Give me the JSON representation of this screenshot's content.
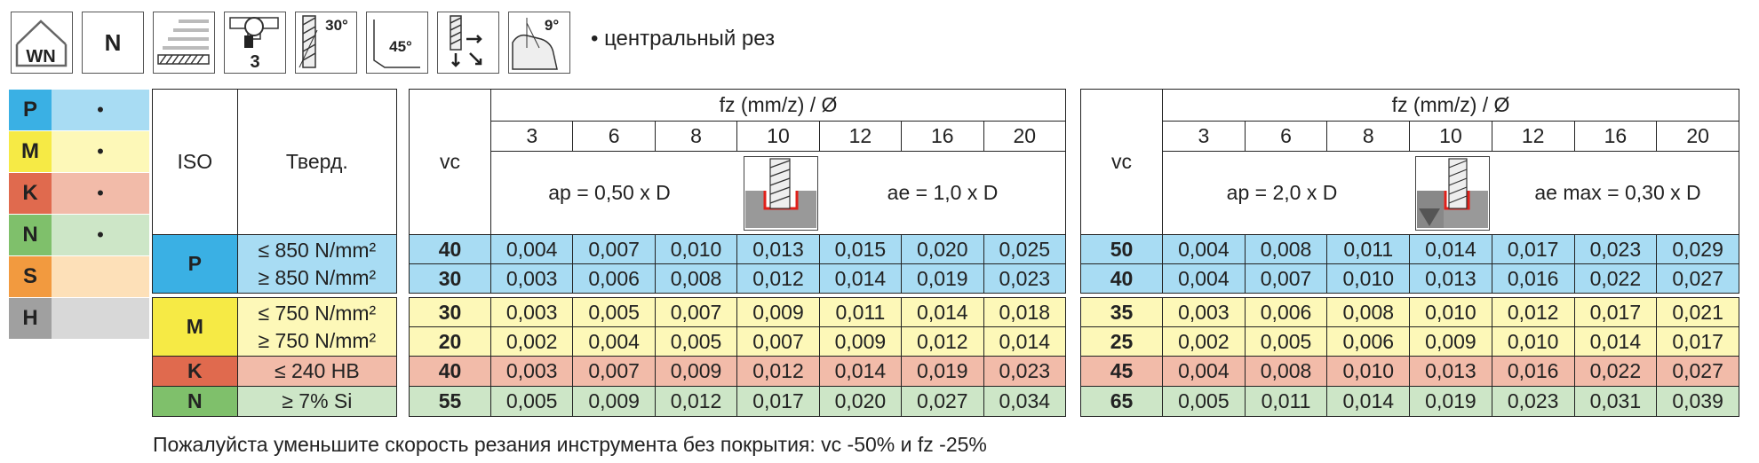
{
  "header": {
    "icons": [
      {
        "name": "wn-roof-icon",
        "label": "WN"
      },
      {
        "name": "n-box-icon",
        "label": "N"
      },
      {
        "name": "surface-finish-icon"
      },
      {
        "name": "flute-count-icon",
        "label": "3"
      },
      {
        "name": "helix-angle-icon",
        "label": "30°"
      },
      {
        "name": "corner-chamfer-icon",
        "label": "45°"
      },
      {
        "name": "plunge-direction-icon"
      },
      {
        "name": "clearance-angle-icon",
        "label": "9°"
      }
    ],
    "note": "• центральный рез"
  },
  "legend": [
    {
      "letter": "P",
      "dot": "•",
      "color_letter": "#3ab0e4",
      "color_fill": "#a8dcf3"
    },
    {
      "letter": "M",
      "dot": "•",
      "color_letter": "#f6ea45",
      "color_fill": "#fdf8b8"
    },
    {
      "letter": "K",
      "dot": "•",
      "color_letter": "#e06a4e",
      "color_fill": "#f2bba9"
    },
    {
      "letter": "N",
      "dot": "•",
      "color_letter": "#7fc06b",
      "color_fill": "#cde6c7"
    },
    {
      "letter": "S",
      "dot": "",
      "color_letter": "#f29a3f",
      "color_fill": "#fde0b8"
    },
    {
      "letter": "H",
      "dot": "",
      "color_letter": "#a0a0a0",
      "color_fill": "#d8d8d8"
    }
  ],
  "left_table": {
    "col_iso": "ISO",
    "col_hard": "Тверд.",
    "rows": [
      {
        "iso": "P",
        "hard": [
          "≤ 850 N/mm²",
          "≥ 850 N/mm²"
        ],
        "cls": "rowP",
        "iso_color": "#3ab0e4"
      },
      {
        "iso": "M",
        "hard": [
          "≤ 750 N/mm²",
          "≥ 750 N/mm²"
        ],
        "cls": "rowM",
        "iso_color": "#f6ea45"
      },
      {
        "iso": "K",
        "hard": [
          "≤ 240 HB"
        ],
        "cls": "rowK",
        "iso_color": "#e06a4e"
      },
      {
        "iso": "N",
        "hard": [
          "≥ 7% Si"
        ],
        "cls": "rowN",
        "iso_color": "#7fc06b"
      }
    ]
  },
  "table1": {
    "vc_label": "vc",
    "fz_label": "fz (mm/z) / Ø",
    "diameters": [
      "3",
      "6",
      "8",
      "10",
      "12",
      "16",
      "20"
    ],
    "ap": "ap = 0,50 x D",
    "ae": "ae = 1,0 x D",
    "rows": [
      {
        "vc": "40",
        "vals": [
          "0,004",
          "0,007",
          "0,010",
          "0,013",
          "0,015",
          "0,020",
          "0,025"
        ],
        "cls": "rowP"
      },
      {
        "vc": "30",
        "vals": [
          "0,003",
          "0,006",
          "0,008",
          "0,012",
          "0,014",
          "0,019",
          "0,023"
        ],
        "cls": "rowP"
      },
      {
        "vc": "30",
        "vals": [
          "0,003",
          "0,005",
          "0,007",
          "0,009",
          "0,011",
          "0,014",
          "0,018"
        ],
        "cls": "rowM"
      },
      {
        "vc": "20",
        "vals": [
          "0,002",
          "0,004",
          "0,005",
          "0,007",
          "0,009",
          "0,012",
          "0,014"
        ],
        "cls": "rowM"
      },
      {
        "vc": "40",
        "vals": [
          "0,003",
          "0,007",
          "0,009",
          "0,012",
          "0,014",
          "0,019",
          "0,023"
        ],
        "cls": "rowK"
      },
      {
        "vc": "55",
        "vals": [
          "0,005",
          "0,009",
          "0,012",
          "0,017",
          "0,020",
          "0,027",
          "0,034"
        ],
        "cls": "rowN"
      }
    ]
  },
  "table2": {
    "vc_label": "vc",
    "fz_label": "fz (mm/z) / Ø",
    "diameters": [
      "3",
      "6",
      "8",
      "10",
      "12",
      "16",
      "20"
    ],
    "ap": "ap = 2,0 x D",
    "ae": "ae max = 0,30 x D",
    "rows": [
      {
        "vc": "50",
        "vals": [
          "0,004",
          "0,008",
          "0,011",
          "0,014",
          "0,017",
          "0,023",
          "0,029"
        ],
        "cls": "rowP"
      },
      {
        "vc": "40",
        "vals": [
          "0,004",
          "0,007",
          "0,010",
          "0,013",
          "0,016",
          "0,022",
          "0,027"
        ],
        "cls": "rowP"
      },
      {
        "vc": "35",
        "vals": [
          "0,003",
          "0,006",
          "0,008",
          "0,010",
          "0,012",
          "0,017",
          "0,021"
        ],
        "cls": "rowM"
      },
      {
        "vc": "25",
        "vals": [
          "0,002",
          "0,005",
          "0,006",
          "0,009",
          "0,010",
          "0,014",
          "0,017"
        ],
        "cls": "rowM"
      },
      {
        "vc": "45",
        "vals": [
          "0,004",
          "0,008",
          "0,010",
          "0,013",
          "0,016",
          "0,022",
          "0,027"
        ],
        "cls": "rowK"
      },
      {
        "vc": "65",
        "vals": [
          "0,005",
          "0,011",
          "0,014",
          "0,019",
          "0,023",
          "0,031",
          "0,039"
        ],
        "cls": "rowN"
      }
    ]
  },
  "footer": "Пожалуйста уменьшите скорость резания инструмента без покрытия: vc -50% и fz -25%"
}
